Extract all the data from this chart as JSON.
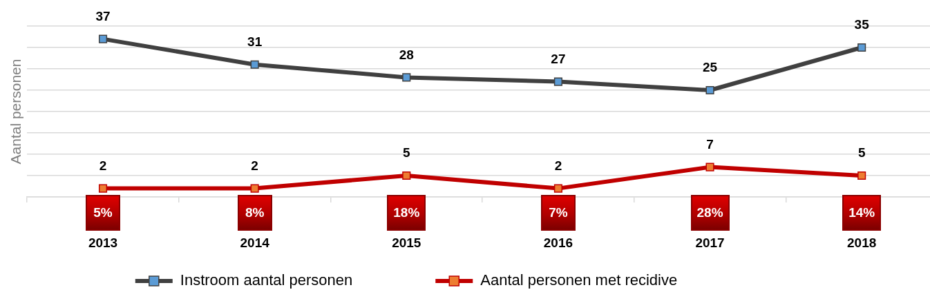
{
  "chart_data": {
    "type": "line",
    "ylabel": "Aantal personen",
    "categories": [
      "2013",
      "2014",
      "2015",
      "2016",
      "2017",
      "2018"
    ],
    "series": [
      {
        "name": "Instroom aantal personen",
        "color": "#404040",
        "colors": [
          "#5b9bd5",
          "#5b9bd5",
          "#5b9bd5",
          "#5b9bd5",
          "#5b9bd5",
          "#5b9bd5"
        ],
        "values": [
          37,
          31,
          28,
          27,
          25,
          35
        ]
      },
      {
        "name": "Aantal personen met recidive",
        "color": "#c00000",
        "colors": [
          "#ed7d31",
          "#ed7d31",
          "#ed7d31",
          "#ed7d31",
          "#ed7d31",
          "#ed7d31"
        ],
        "values": [
          2,
          2,
          5,
          2,
          7,
          5
        ]
      }
    ],
    "ylim": [
      0,
      40
    ],
    "yticks": [
      {
        "value": 0,
        "label": null
      },
      {
        "value": 5,
        "label": null
      },
      {
        "value": 10,
        "label": null
      },
      {
        "value": 15,
        "label": null
      },
      {
        "value": 20,
        "label": null
      },
      {
        "value": 25,
        "label": null
      },
      {
        "value": 30,
        "label": null
      },
      {
        "value": 35,
        "label": null
      },
      {
        "value": 40,
        "label": null
      }
    ],
    "tick_labels": "x",
    "grid": "y",
    "legend": "bottom",
    "marker": "square",
    "line_style": "solid",
    "data_labels": true,
    "annotations": [
      "5%",
      "8%",
      "18%",
      "7%",
      "28%",
      "14%"
    ]
  }
}
